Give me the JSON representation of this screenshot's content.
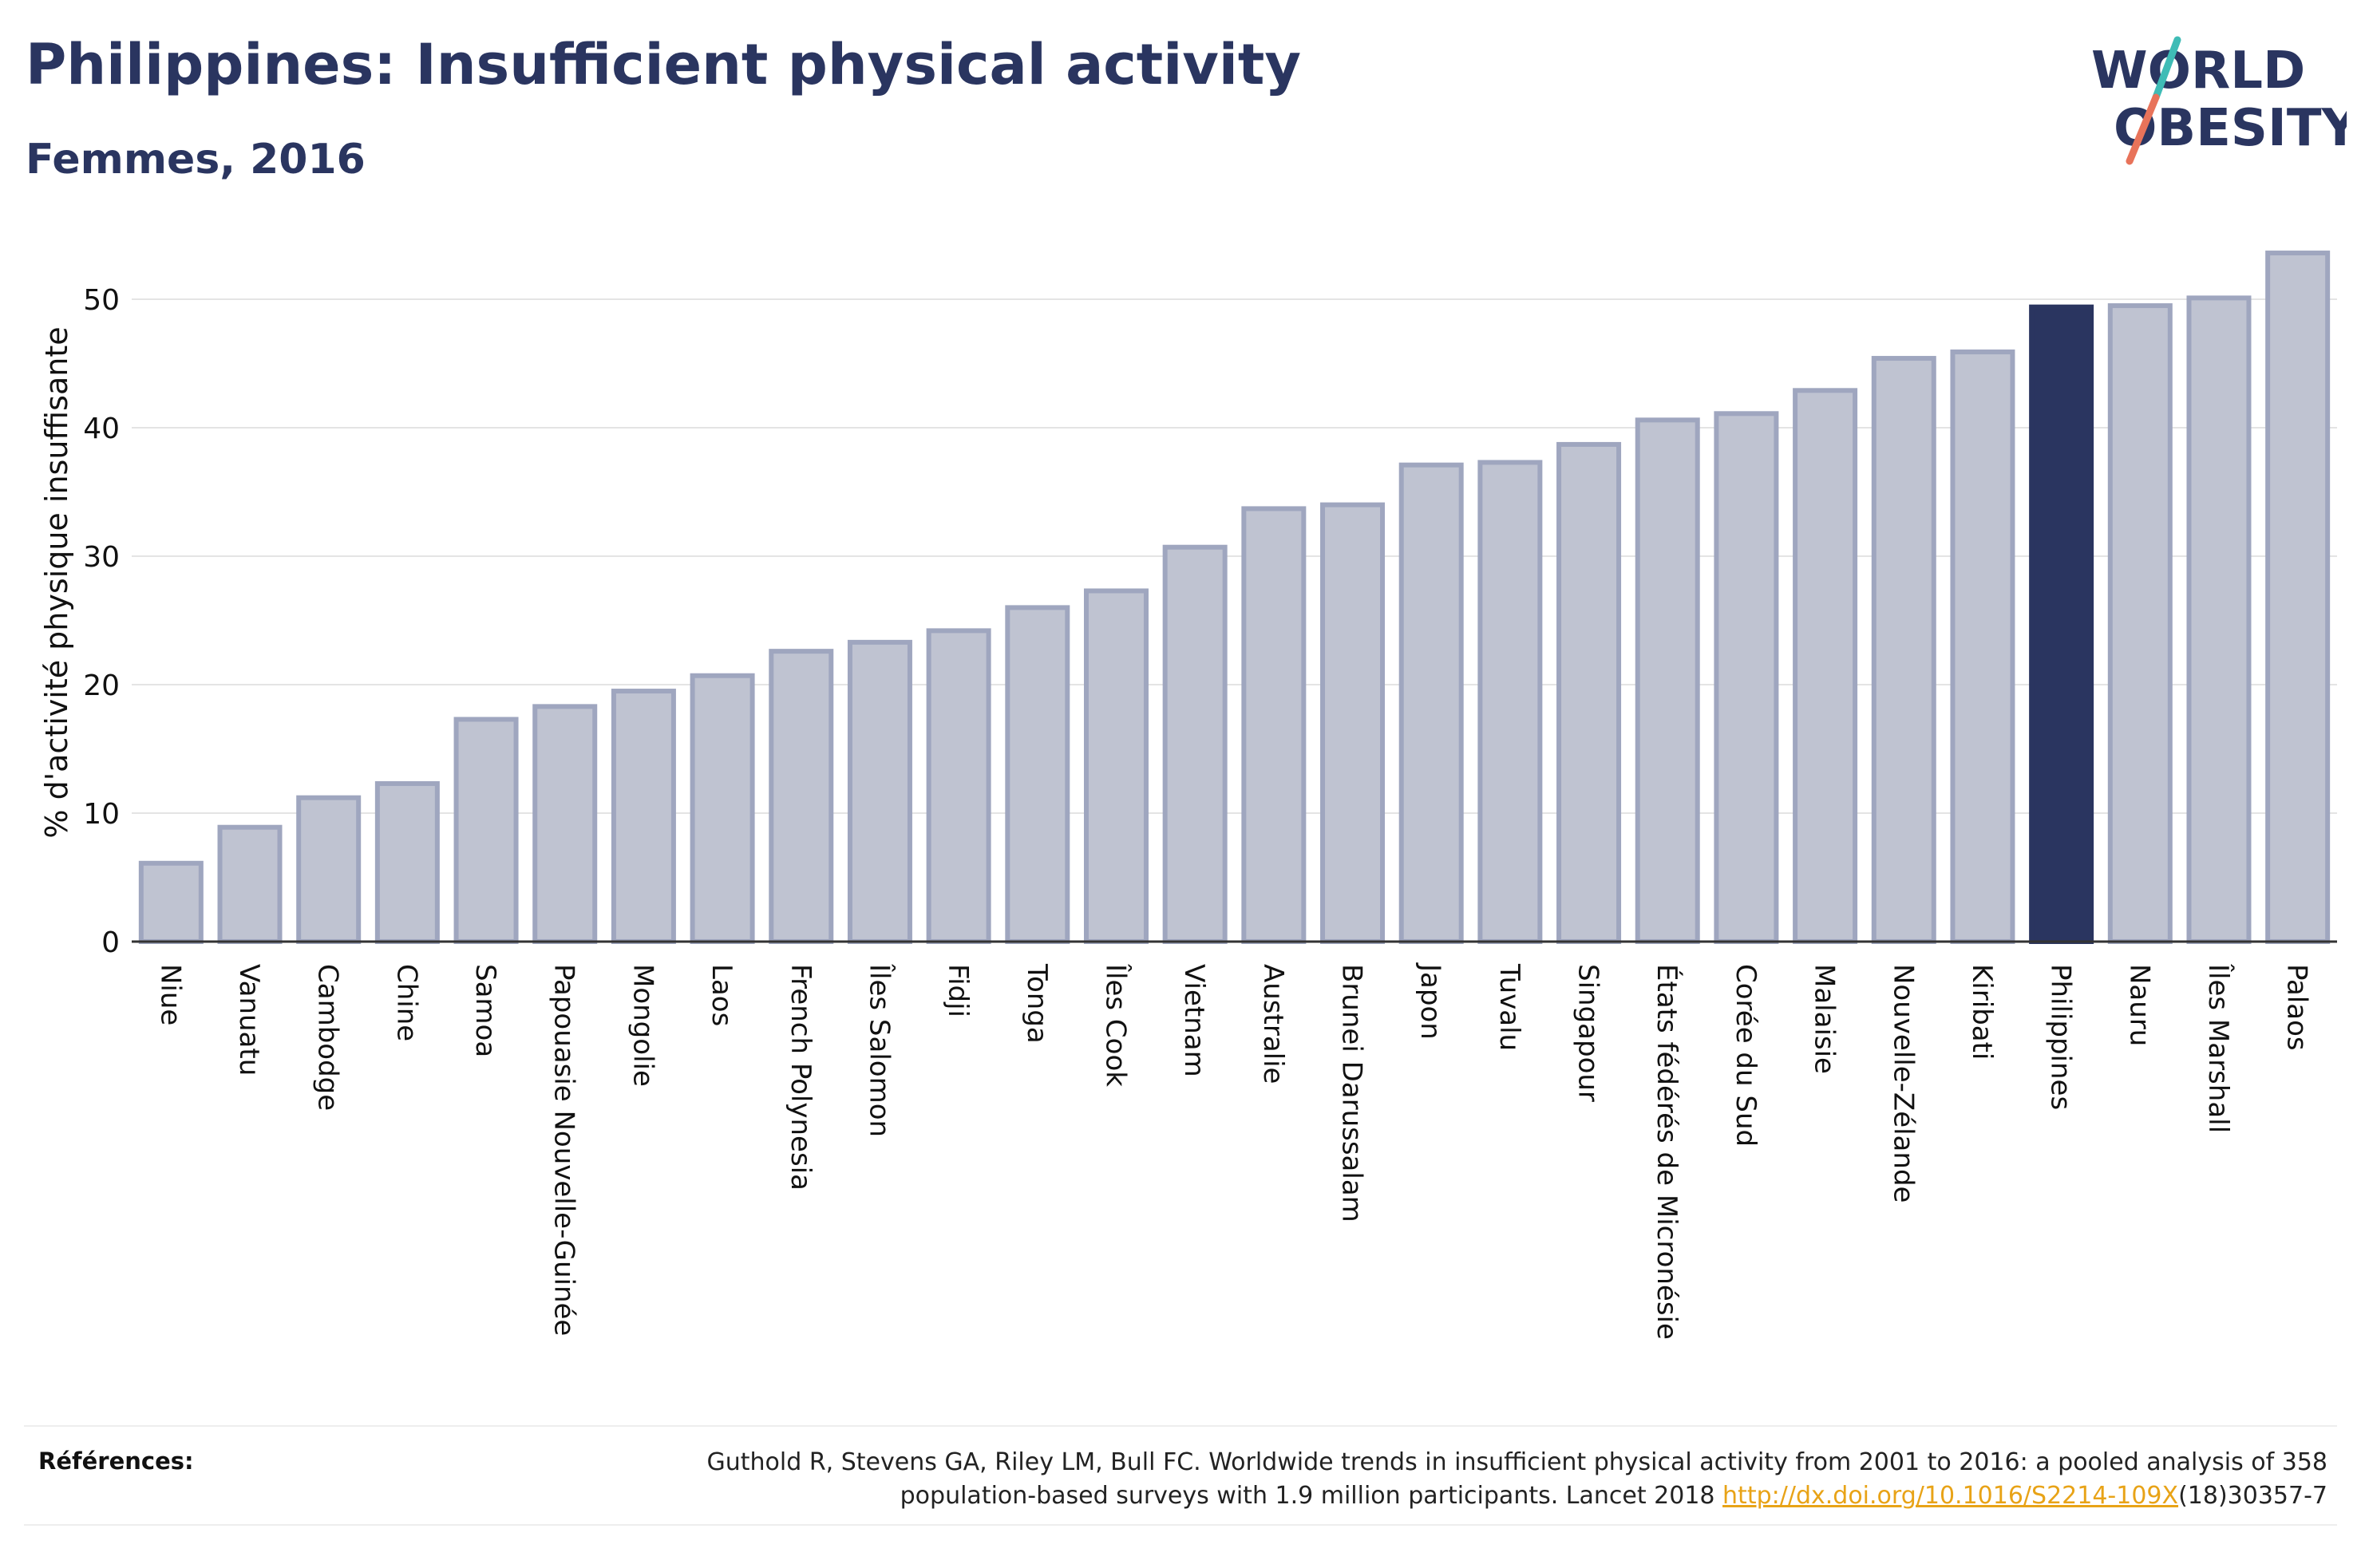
{
  "header": {
    "title": "Philippines: Insufficient physical activity",
    "subtitle": "Femmes, 2016"
  },
  "logo": {
    "line1": "WORLD",
    "line2": "OBESITY"
  },
  "colors": {
    "bar": "#bfc3d1",
    "bar_stroke": "#9fa6bf",
    "highlight": "#2a3560",
    "text": "#2a3560",
    "grid": "#e4e4e4",
    "link": "#e8a317"
  },
  "chart_data": {
    "type": "bar",
    "title": "Philippines: Insufficient physical activity",
    "subtitle": "Femmes, 2016",
    "ylabel": "% d'activité physique insuffisante",
    "xlabel": "",
    "ylim": [
      0,
      55
    ],
    "yticks": [
      0,
      10,
      20,
      30,
      40,
      50
    ],
    "grid": true,
    "highlight": "Philippines",
    "categories": [
      "Niue",
      "Vanuatu",
      "Cambodge",
      "Chine",
      "Samoa",
      "Papouasie Nouvelle-Guinée",
      "Mongolie",
      "Laos",
      "French Polynesia",
      "Îles Salomon",
      "Fidji",
      "Tonga",
      "Îles Cook",
      "Vietnam",
      "Australie",
      "Brunei Darussalam",
      "Japon",
      "Tuvalu",
      "Singapour",
      "États fédérés de Micronésie",
      "Corée du Sud",
      "Malaisie",
      "Nouvelle-Zélande",
      "Kiribati",
      "Philippines",
      "Nauru",
      "Îles Marshall",
      "Palaos"
    ],
    "values": [
      6.1,
      8.9,
      11.2,
      12.3,
      17.3,
      18.3,
      19.5,
      20.7,
      22.6,
      23.3,
      24.2,
      26.0,
      27.3,
      30.7,
      33.7,
      34.0,
      37.1,
      37.3,
      38.7,
      40.6,
      41.1,
      42.9,
      45.4,
      45.9,
      49.4,
      49.5,
      50.1,
      53.6
    ]
  },
  "references": {
    "label": "Références:",
    "line1": "Guthold R, Stevens GA, Riley LM, Bull FC. Worldwide trends in insufficient physical activity from 2001 to 2016: a pooled analysis of 358",
    "line2_before": "population-based surveys with 1.9 million participants. Lancet 2018 ",
    "link": "http://dx.doi.org/10.1016/S2214-109X",
    "line2_after": "(18)30357-7"
  }
}
